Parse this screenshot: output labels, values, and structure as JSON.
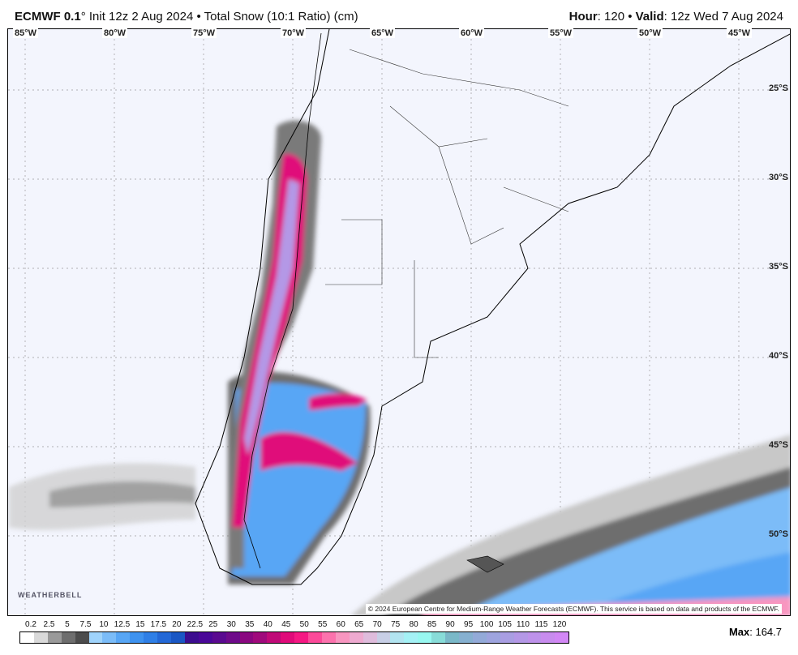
{
  "header": {
    "model": "ECMWF 0.1",
    "degree": "°",
    "init": " Init 12z 2 Aug 2024 • Total Snow (10:1 Ratio) (cm)",
    "hour_label": "Hour",
    "hour": ": 120 • ",
    "valid_label": "Valid",
    "valid": ": 12z Wed 7 Aug 2024"
  },
  "map": {
    "lon_labels": [
      "85°W",
      "80°W",
      "75°W",
      "70°W",
      "65°W",
      "60°W",
      "55°W",
      "50°W",
      "45°W"
    ],
    "lat_labels": [
      "25°S",
      "30°S",
      "35°S",
      "40°S",
      "45°S",
      "50°S"
    ],
    "copyright": "© 2024 European Centre for Medium-Range Weather Forecasts (ECMWF). This service is based on data and products of the ECMWF.",
    "logo": "WEATHERBELL",
    "colors": {
      "ocean": "#f3f5fd",
      "land": "#f3f5fd",
      "border": "#000000"
    }
  },
  "legend": {
    "ticks": [
      "0.2",
      "2.5",
      "5",
      "7.5",
      "10",
      "12.5",
      "15",
      "17.5",
      "20",
      "22.5",
      "25",
      "30",
      "35",
      "40",
      "45",
      "50",
      "55",
      "60",
      "65",
      "70",
      "75",
      "80",
      "85",
      "90",
      "95",
      "100",
      "105",
      "110",
      "115",
      "120"
    ],
    "colors": [
      "#ffffff",
      "#d9d9d9",
      "#9a9a9a",
      "#6e6e6e",
      "#4c4c4c",
      "#9fd3fb",
      "#7bbcf8",
      "#58a6f5",
      "#3e92ef",
      "#2f7fe6",
      "#2468d6",
      "#1a57c4",
      "#3c0d8f",
      "#4a0898",
      "#5a0a90",
      "#6e0a8a",
      "#8a0880",
      "#a00a7c",
      "#c00a78",
      "#e00b7a",
      "#f51883",
      "#fb4a99",
      "#fc72ad",
      "#f896c0",
      "#eeaad0",
      "#dfbcdc",
      "#c8cfe6",
      "#b2e4f0",
      "#a4f1f5",
      "#98f7f0",
      "#88dcd8",
      "#7ab8c8",
      "#86b0d0",
      "#93aad8",
      "#9ea4de",
      "#a99ee2",
      "#b498e6",
      "#be92ea",
      "#c88cee",
      "#d287f5"
    ],
    "max_label": "Max",
    "max_value": ": 164.7"
  }
}
